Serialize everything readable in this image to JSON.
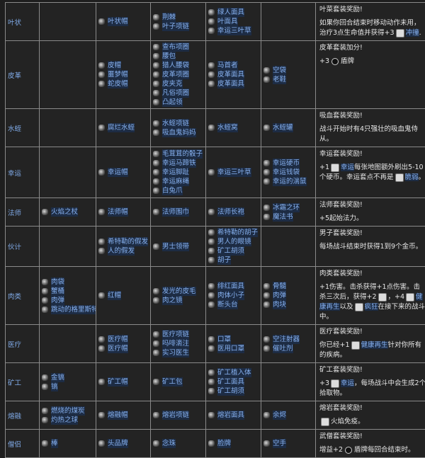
{
  "colors": {
    "background": "#232323",
    "grid": "#8a8a8a",
    "link": "#86b0ee",
    "text": "#e6e6e6"
  },
  "rows": [
    {
      "name": "叶状",
      "cols": [
        [],
        [
          "叶状帽"
        ],
        [
          "荆棘",
          "叶子项链"
        ],
        [
          "绿人面具",
          "叶面具",
          "幸运三叶草"
        ],
        []
      ],
      "desc": {
        "title": "叶菜套装奖励!",
        "parts": [
          {
            "t": "如果你回合结束时移动动作未用，治疗3点生命值并获得+3"
          },
          {
            "icon": "dash-icon"
          },
          {
            "t": "冲撞",
            "link": true
          },
          {
            "t": "."
          }
        ]
      }
    },
    {
      "name": "皮革",
      "cols": [
        [],
        [
          "皮帽",
          "噩梦帽",
          "蛇皮帽"
        ],
        [
          "查布项圈",
          "腰包",
          "猎人腰袋",
          "皮革项圈",
          "皮夹克",
          "凡俗项圈",
          "凸起领"
        ],
        [
          "马首者",
          "皮革面具",
          "皮革面具"
        ],
        [
          "空袋",
          "老鞋"
        ]
      ],
      "desc": {
        "title": "皮革套装加分!",
        "parts": [
          {
            "t": "+3"
          },
          {
            "icon": "shield-dot-icon"
          },
          {
            "t": "盾牌"
          }
        ]
      }
    },
    {
      "name": "水蛭",
      "cols": [
        [],
        [
          "腐烂水蛭"
        ],
        [
          "水蛭项链",
          "吸血鬼妈妈"
        ],
        [
          "水蛭窝"
        ],
        [
          "水蛭罐"
        ]
      ],
      "desc": {
        "title": "吸血套装奖励!",
        "parts": [
          {
            "t": "战斗开始时有4只强壮的吸血鬼侍从。"
          }
        ]
      }
    },
    {
      "name": "幸运",
      "cols": [
        [],
        [
          "幸运帽"
        ],
        [
          "毛茸茸的骰子",
          "幸运马蹄铁",
          "幸运脚趾",
          "幸运麻绳",
          "白兔爪"
        ],
        [
          "幸运三叶草"
        ],
        [
          "幸运硬币",
          "幸运钱袋",
          "幸运的湍鼠"
        ]
      ],
      "desc": {
        "title": "幸运套装奖励!",
        "parts": [
          {
            "t": "+1"
          },
          {
            "icon": "luck-icon"
          },
          {
            "t": "幸运",
            "link": true
          },
          {
            "t": "每张地图额外刷出5-10个硬币。幸运套点不再是"
          },
          {
            "icon": "fragile-icon"
          },
          {
            "t": "脆弱",
            "link": true
          },
          {
            "t": "。"
          }
        ]
      }
    },
    {
      "name": "法师",
      "cols": [
        [
          "火焰之杖"
        ],
        [
          "法师帽"
        ],
        [
          "法师围巾"
        ],
        [
          "法师长袍"
        ],
        [
          "冰霜之环",
          "魔法书"
        ]
      ],
      "desc": {
        "title": "法师套装奖励!",
        "parts": [
          {
            "t": "+5起始法力。"
          }
        ]
      }
    },
    {
      "name": "伙计",
      "cols": [
        [],
        [
          "希特勒的假发",
          "人的假发"
        ],
        [
          "男士领带"
        ],
        [
          "希特勒的胡子",
          "男人的眼镜",
          "矿工胡须",
          "胡子"
        ],
        []
      ],
      "desc": {
        "title": "男子套装奖励!",
        "parts": [
          {
            "t": "每场战斗结束时获得1到9个金币。"
          }
        ]
      }
    },
    {
      "name": "肉类",
      "cols": [
        [
          "肉袋",
          "蟹桶",
          "肉弹",
          "跳动的格里斯特尔"
        ],
        [
          "红帽"
        ],
        [
          "发光的皮毛",
          "肉之镜"
        ],
        [
          "绯红面具",
          "肉体小子",
          "断头台"
        ],
        [
          "骨髓",
          "肉弹",
          "肉块"
        ]
      ],
      "desc": {
        "title": "肉类套装奖励!",
        "parts": [
          {
            "t": "+1伤害。击杀获得+1点伤害。击杀三次后，获得+2"
          },
          {
            "icon": "damage-icon"
          },
          {
            "t": "，+4"
          },
          {
            "icon": "regen-icon"
          },
          {
            "t": "健康再生",
            "link": true
          },
          {
            "t": "以及"
          },
          {
            "icon": "frenzy-icon"
          },
          {
            "t": "疯狂",
            "link": true
          },
          {
            "t": "在接下来的战斗中。"
          }
        ]
      }
    },
    {
      "name": "医疗",
      "cols": [
        [],
        [
          "医疗帽",
          "医疗帽"
        ],
        [
          "医疗项链",
          "吗啡滴注",
          "实习医生"
        ],
        [
          "口罩",
          "医用口罩"
        ],
        [
          "空注射器",
          "催吐剂"
        ]
      ],
      "desc": {
        "title": "医疗套装奖励!",
        "parts": [
          {
            "t": "你已经+1"
          },
          {
            "icon": "regen-icon"
          },
          {
            "t": "健康再生",
            "link": true
          },
          {
            "t": "针对你所有的疾病。"
          }
        ]
      }
    },
    {
      "name": "矿工",
      "cols": [
        [
          "金镐",
          "镐"
        ],
        [
          "矿工帽"
        ],
        [
          "矿工包"
        ],
        [
          "矿工植入体",
          "矿工面具",
          "矿工胡须"
        ],
        []
      ],
      "desc": {
        "title": "矿工套装奖励!",
        "parts": [
          {
            "t": "+3"
          },
          {
            "icon": "luck-icon"
          },
          {
            "t": "幸运",
            "link": true
          },
          {
            "t": "，每场战斗中会生成2个拾取物。"
          }
        ]
      }
    },
    {
      "name": "熔融",
      "cols": [
        [
          "燃烧的煤炭",
          "灼热之球"
        ],
        [
          "熔融帽"
        ],
        [
          "熔岩项链"
        ],
        [
          "熔岩面具"
        ],
        [
          "余烬"
        ]
      ],
      "desc": {
        "title": "熔岩套装奖励!",
        "parts": [
          {
            "icon": "fire-immunity-icon"
          },
          {
            "t": "火焰免疫。"
          }
        ]
      }
    },
    {
      "name": "僧侣",
      "cols": [
        [
          "棒"
        ],
        [
          "头品牌"
        ],
        [
          "念珠"
        ],
        [
          "脸牌"
        ],
        [
          "空手"
        ]
      ],
      "desc": {
        "title": "武僧套装奖励!",
        "parts": [
          {
            "t": "增益+2"
          },
          {
            "icon": "shield-dot-icon"
          },
          {
            "t": "盾牌每回合结束时。"
          }
        ]
      }
    }
  ]
}
